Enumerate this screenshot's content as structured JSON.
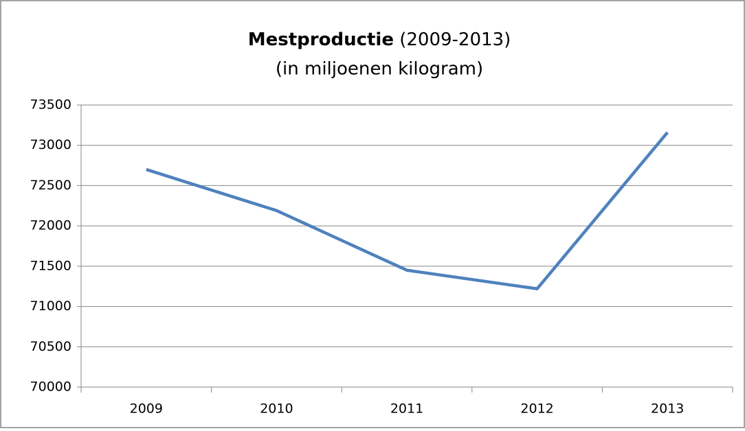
{
  "chart_data": {
    "type": "line",
    "title": "Mestproductie",
    "title_period": "(2009-2013)",
    "subtitle": "(in miljoenen kilogram)",
    "categories": [
      "2009",
      "2010",
      "2011",
      "2012",
      "2013"
    ],
    "series": [
      {
        "name": null,
        "color": "#4f81bd",
        "values": [
          72700,
          72190,
          71450,
          71220,
          73160
        ]
      }
    ],
    "ylim": [
      70000,
      73500
    ],
    "yticks": [
      70000,
      70500,
      71000,
      71500,
      72000,
      72500,
      73000,
      73500
    ],
    "grid": true
  }
}
